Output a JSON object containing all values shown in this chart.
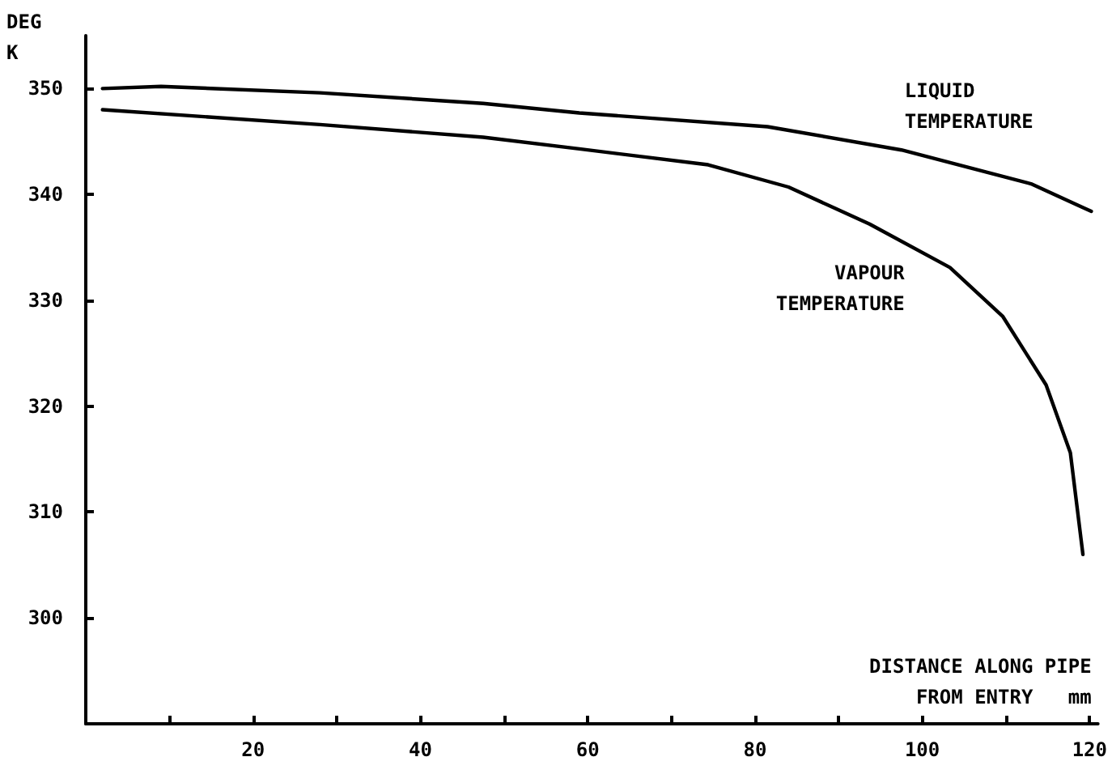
{
  "chart_data": {
    "type": "line",
    "xlabel": "DISTANCE ALONG PIPE\nFROM ENTRY   mm",
    "ylabel": "DEG\nK",
    "xlim": [
      0,
      121
    ],
    "ylim": [
      290,
      355
    ],
    "xticks": [
      {
        "value": 10,
        "label": null
      },
      20,
      {
        "value": 30,
        "label": null
      },
      40,
      {
        "value": 50,
        "label": null
      },
      60,
      {
        "value": 70,
        "label": null
      },
      80,
      {
        "value": 90,
        "label": null
      },
      100,
      {
        "value": 110,
        "label": null
      },
      120
    ],
    "yticks": [
      300,
      310,
      320,
      330,
      340,
      350
    ],
    "marker": "none",
    "line_style": "solid",
    "series": [
      {
        "name": "LIQUID\nTEMPERATURE",
        "color": "#000000",
        "x": [
          2,
          9,
          28,
          47.5,
          59,
          81.5,
          97.5,
          113,
          120.2
        ],
        "values": [
          350,
          350.2,
          349.6,
          348.6,
          347.7,
          346.4,
          344.2,
          341,
          338.4
        ]
      },
      {
        "name": "VAPOUR\nTEMPERATURE",
        "color": "#000000",
        "x": [
          2,
          28,
          47.5,
          59,
          74.4,
          84,
          93.7,
          103.3,
          109.6,
          114.8,
          117.7,
          119.2
        ],
        "values": [
          348,
          346.6,
          345.4,
          344.3,
          342.8,
          340.7,
          337.2,
          333.1,
          328.5,
          322,
          315.6,
          306
        ]
      }
    ]
  }
}
